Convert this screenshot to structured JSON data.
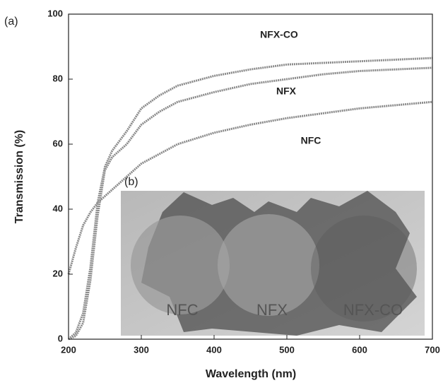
{
  "chart_data": {
    "type": "line",
    "panel_label": "(a)",
    "x_label": "Wavelength (nm)",
    "y_label": "Transmission (%)",
    "x": [
      200,
      210,
      220,
      230,
      240,
      250,
      260,
      280,
      300,
      325,
      350,
      400,
      450,
      500,
      550,
      600,
      650,
      700
    ],
    "series": [
      {
        "name": "NFX-CO",
        "color": "#8a8a8a",
        "values": [
          0,
          2,
          8,
          22,
          42,
          53,
          58,
          64,
          71,
          75,
          78,
          81,
          83,
          84.5,
          85,
          85.5,
          86,
          86.5
        ]
      },
      {
        "name": "NFX",
        "color": "#8a8a8a",
        "values": [
          0,
          1,
          5,
          18,
          38,
          52,
          56,
          60,
          66,
          70,
          73,
          76,
          78.5,
          80,
          81.5,
          82.5,
          83,
          83.5
        ]
      },
      {
        "name": "NFC",
        "color": "#8a8a8a",
        "values": [
          20,
          28,
          35,
          39,
          42,
          44,
          46,
          50,
          54,
          57,
          60,
          63.5,
          66,
          68,
          69.5,
          71,
          72,
          73
        ]
      }
    ],
    "xlim": [
      200,
      700
    ],
    "ylim": [
      0,
      100
    ],
    "xticks": [
      200,
      300,
      400,
      500,
      600,
      700
    ],
    "yticks": [
      0,
      20,
      40,
      60,
      80,
      100
    ],
    "inset": {
      "label": "(b)",
      "samples": [
        "NFC",
        "NFX",
        "NFX-CO"
      ]
    }
  }
}
